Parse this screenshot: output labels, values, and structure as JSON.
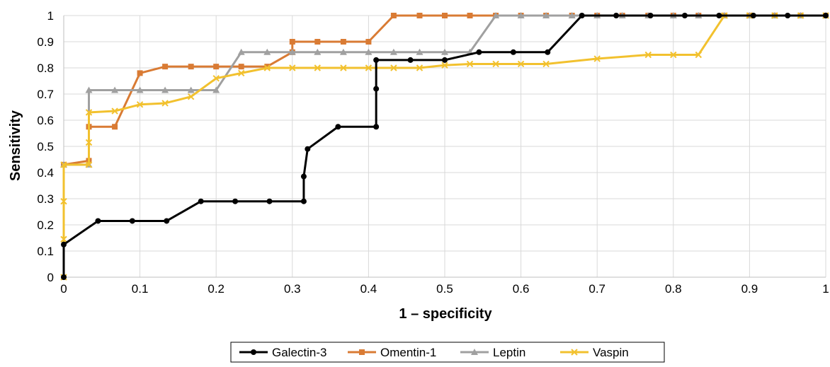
{
  "chart_data": {
    "type": "line",
    "title": "",
    "xlabel": "1 – specificity",
    "ylabel": "Sensitivity",
    "xlim": [
      0,
      1
    ],
    "ylim": [
      0,
      1
    ],
    "grid": true,
    "legend_position": "bottom",
    "x_ticks": [
      "0",
      "0.1",
      "0.2",
      "0.3",
      "0.4",
      "0.5",
      "0.6",
      "0.7",
      "0.8",
      "0.9",
      "1"
    ],
    "y_ticks": [
      "0",
      "0.1",
      "0.2",
      "0.3",
      "0.4",
      "0.5",
      "0.6",
      "0.7",
      "0.8",
      "0.9",
      "1"
    ],
    "series": [
      {
        "name": "Galectin-3",
        "color": "#000000",
        "marker": "circle",
        "x": [
          0,
          0,
          0.045,
          0.09,
          0.135,
          0.18,
          0.225,
          0.27,
          0.315,
          0.315,
          0.32,
          0.36,
          0.41,
          0.41,
          0.41,
          0.455,
          0.5,
          0.545,
          0.59,
          0.635,
          0.68,
          0.725,
          0.77,
          0.815,
          0.86,
          0.905,
          0.95,
          1.0
        ],
        "y": [
          0,
          0.125,
          0.215,
          0.215,
          0.215,
          0.29,
          0.29,
          0.29,
          0.29,
          0.385,
          0.49,
          0.575,
          0.575,
          0.72,
          0.83,
          0.83,
          0.83,
          0.86,
          0.86,
          0.86,
          1,
          1,
          1,
          1,
          1,
          1,
          1,
          1
        ]
      },
      {
        "name": "Omentin-1",
        "color": "#D97B34",
        "marker": "square",
        "x": [
          0,
          0.033,
          0.033,
          0.067,
          0.1,
          0.133,
          0.167,
          0.2,
          0.233,
          0.267,
          0.3,
          0.3,
          0.333,
          0.367,
          0.4,
          0.433,
          0.467,
          0.5,
          0.533,
          0.567,
          0.6,
          0.633,
          0.667,
          0.7,
          0.733,
          0.767,
          0.8,
          0.833,
          0.867,
          0.9,
          0.933,
          0.967,
          1.0
        ],
        "y": [
          0.43,
          0.445,
          0.575,
          0.575,
          0.78,
          0.805,
          0.805,
          0.805,
          0.805,
          0.805,
          0.86,
          0.9,
          0.9,
          0.9,
          0.9,
          1,
          1,
          1,
          1,
          1,
          1,
          1,
          1,
          1,
          1,
          1,
          1,
          1,
          1,
          1,
          1,
          1,
          1
        ]
      },
      {
        "name": "Leptin",
        "color": "#A0A0A0",
        "marker": "triangle",
        "x": [
          0,
          0.033,
          0.033,
          0.067,
          0.1,
          0.133,
          0.167,
          0.2,
          0.233,
          0.267,
          0.3,
          0.333,
          0.367,
          0.4,
          0.433,
          0.467,
          0.5,
          0.533,
          0.567,
          0.6,
          0.633,
          0.667,
          0.7,
          0.733,
          0.767,
          0.8,
          0.833,
          0.867,
          0.9,
          0.933,
          0.967,
          1.0
        ],
        "y": [
          0.43,
          0.43,
          0.715,
          0.715,
          0.715,
          0.715,
          0.715,
          0.715,
          0.86,
          0.86,
          0.86,
          0.86,
          0.86,
          0.86,
          0.86,
          0.86,
          0.86,
          0.86,
          1,
          1,
          1,
          1,
          1,
          1,
          1,
          1,
          1,
          1,
          1,
          1,
          1,
          1
        ]
      },
      {
        "name": "Vaspin",
        "color": "#F2C12E",
        "marker": "x",
        "x": [
          0,
          0,
          0,
          0,
          0.033,
          0.033,
          0.033,
          0.067,
          0.1,
          0.133,
          0.167,
          0.2,
          0.233,
          0.267,
          0.3,
          0.333,
          0.367,
          0.4,
          0.433,
          0.467,
          0.5,
          0.533,
          0.567,
          0.6,
          0.633,
          0.7,
          0.767,
          0.8,
          0.833,
          0.867,
          0.9,
          0.933,
          0.967,
          1.0
        ],
        "y": [
          0,
          0.145,
          0.29,
          0.43,
          0.43,
          0.515,
          0.63,
          0.635,
          0.66,
          0.665,
          0.69,
          0.76,
          0.78,
          0.8,
          0.8,
          0.8,
          0.8,
          0.8,
          0.8,
          0.8,
          0.81,
          0.815,
          0.815,
          0.815,
          0.815,
          0.835,
          0.85,
          0.85,
          0.85,
          1,
          1,
          1,
          1,
          1
        ]
      }
    ]
  }
}
